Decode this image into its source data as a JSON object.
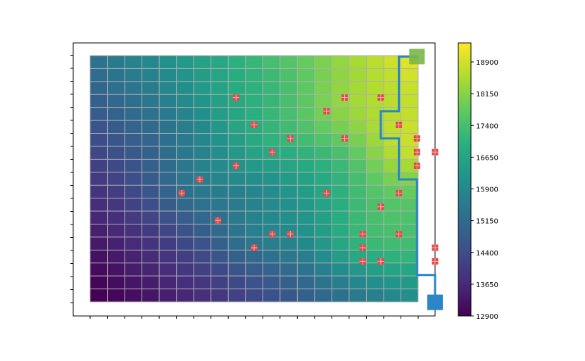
{
  "chart_data": {
    "type": "heatmap",
    "title": "",
    "xlabel": "",
    "ylabel": "",
    "grid": true,
    "grid_cols": 19,
    "grid_rows": 19,
    "xlim": [
      0,
      20
    ],
    "ylim": [
      0,
      20
    ],
    "x_tick_labels_shown": false,
    "y_tick_labels_shown": false,
    "field": {
      "min": 12900,
      "max": 19050,
      "min_corner": "bottom-left",
      "max_corner": "top-right"
    },
    "colorbar": {
      "colormap": "viridis",
      "range": [
        12900,
        19050
      ],
      "ticks": [
        "18900",
        "18150",
        "17400",
        "16650",
        "15900",
        "15150",
        "14400",
        "13650",
        "12900"
      ]
    },
    "obstacles": {
      "color": "#e8474b",
      "points": [
        [
          9,
          16
        ],
        [
          15,
          16
        ],
        [
          17,
          16
        ],
        [
          14,
          15
        ],
        [
          10,
          14
        ],
        [
          18,
          14
        ],
        [
          12,
          13
        ],
        [
          15,
          13
        ],
        [
          19,
          13
        ],
        [
          11,
          12
        ],
        [
          19,
          12
        ],
        [
          20,
          12
        ],
        [
          9,
          11
        ],
        [
          19,
          11
        ],
        [
          7,
          10
        ],
        [
          6,
          9
        ],
        [
          14,
          9
        ],
        [
          18,
          9
        ],
        [
          17,
          8
        ],
        [
          8,
          7
        ],
        [
          11,
          6
        ],
        [
          12,
          6
        ],
        [
          16,
          6
        ],
        [
          18,
          6
        ],
        [
          10,
          5
        ],
        [
          16,
          5
        ],
        [
          20,
          5
        ],
        [
          16,
          4
        ],
        [
          17,
          4
        ],
        [
          20,
          4
        ]
      ]
    },
    "start": {
      "point": [
        20,
        1
      ],
      "color": "#2a86c6"
    },
    "goal": {
      "point": [
        19,
        19
      ],
      "color": "#7ab648"
    },
    "path": {
      "color": "#2a86c6",
      "points": [
        [
          20,
          1
        ],
        [
          20,
          3
        ],
        [
          19,
          3
        ],
        [
          19,
          10
        ],
        [
          18,
          10
        ],
        [
          18,
          13
        ],
        [
          17,
          13
        ],
        [
          17,
          15
        ],
        [
          18,
          15
        ],
        [
          18,
          19
        ],
        [
          19,
          19
        ]
      ]
    }
  }
}
